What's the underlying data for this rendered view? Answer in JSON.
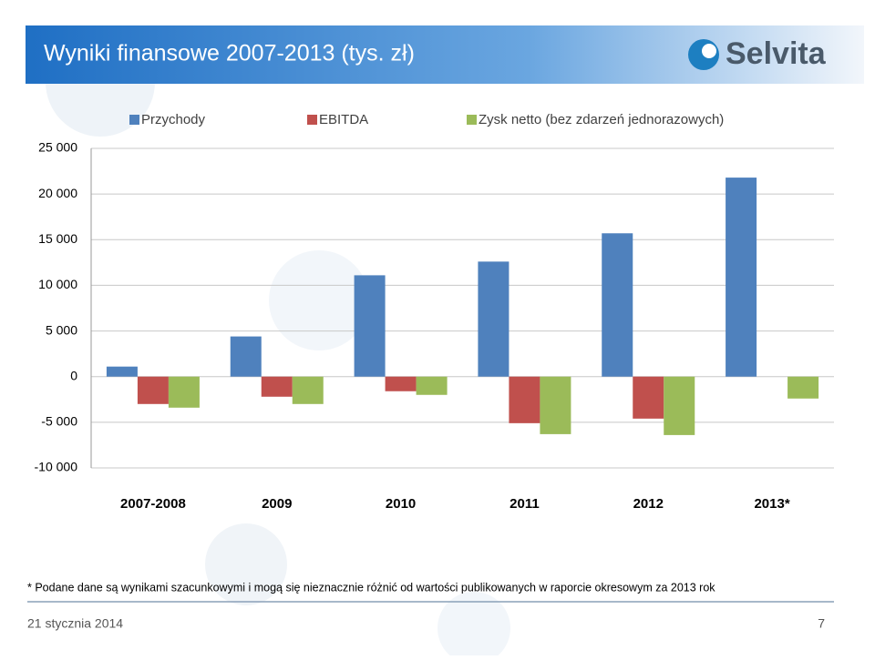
{
  "chart_data": {
    "type": "bar",
    "title": "Wyniki finansowe 2007-2013 (tys. zł)",
    "categories": [
      "2007-2008",
      "2009",
      "2010",
      "2011",
      "2012",
      "2013*"
    ],
    "series": [
      {
        "name": "Przychody",
        "color": "#4f81bd",
        "values": [
          1100,
          4400,
          11100,
          12600,
          15700,
          21800
        ]
      },
      {
        "name": "EBITDA",
        "color": "#c0504d",
        "values": [
          -3000,
          -2200,
          -1600,
          -5100,
          -4600,
          null
        ]
      },
      {
        "name": "Zysk netto (bez zdarzeń jednorazowych)",
        "color": "#9bbb59",
        "values": [
          -3400,
          -3000,
          -2000,
          -6300,
          -6400,
          -2400
        ]
      }
    ],
    "ylim": [
      -10000,
      25000
    ],
    "yticks": [
      {
        "value": -10000,
        "label": "-10 000"
      },
      {
        "value": -5000,
        "label": "-5 000"
      },
      0,
      {
        "value": 5000,
        "label": "5 000"
      },
      {
        "value": 10000,
        "label": "10 000"
      },
      {
        "value": 15000,
        "label": "15 000"
      },
      {
        "value": 20000,
        "label": "20 000"
      },
      {
        "value": 25000,
        "label": "25 000"
      }
    ],
    "grid": true
  },
  "logo": "Selvita",
  "footnote": "* Podane dane są wynikami szacunkowymi i mogą się nieznacznie różnić od wartości publikowanych w raporcie okresowym za 2013 rok",
  "footer": {
    "date": "21 stycznia 2014",
    "page": "7"
  }
}
